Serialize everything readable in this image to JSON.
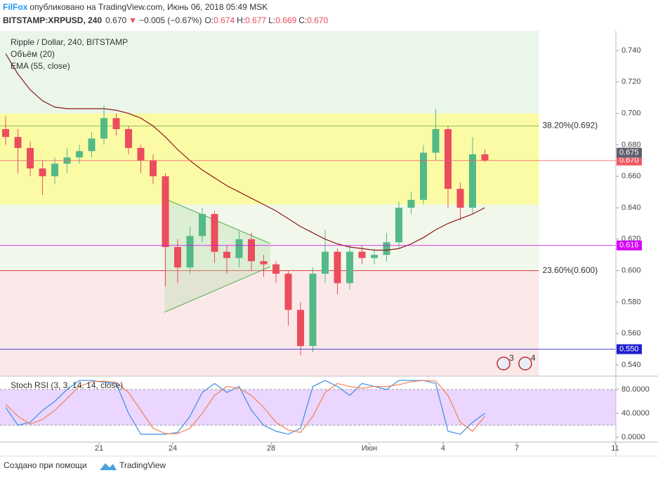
{
  "header": {
    "author": "FilFox",
    "published": "опубликовано на TradingView.com, Июнь 06, 2018 05:49 MSK",
    "symbol": "BITSTAMP:XRPUSD, 240",
    "last": "0.670",
    "arrow": "▼",
    "change": "−0.005 (−0.67%)",
    "ohlc": [
      {
        "key": "O:",
        "value": "0.674"
      },
      {
        "key": "H:",
        "value": "0.677"
      },
      {
        "key": "L:",
        "value": "0.669"
      },
      {
        "key": "C:",
        "value": "0.670"
      }
    ]
  },
  "chart_data": [
    {
      "type": "candlestick",
      "legend": [
        "Ripple / Dollar, 240, BITSTAMP",
        "Объём (20)"
      ],
      "x": [
        17.2,
        17.7,
        18.2,
        18.7,
        19.2,
        19.7,
        20.2,
        20.7,
        21.2,
        21.7,
        22.2,
        22.7,
        23.2,
        23.7,
        24.2,
        24.7,
        25.2,
        25.7,
        26.2,
        26.7,
        27.2,
        27.7,
        28.2,
        28.7,
        29.2,
        29.7,
        30.2,
        30.7,
        31.2,
        31.7,
        32.2,
        32.7,
        33.2,
        33.7,
        34.2,
        34.7,
        35.2,
        35.7,
        36.2,
        36.7
      ],
      "open": [
        0.69,
        0.685,
        0.678,
        0.665,
        0.66,
        0.668,
        0.672,
        0.676,
        0.684,
        0.697,
        0.69,
        0.678,
        0.67,
        0.66,
        0.615,
        0.602,
        0.622,
        0.636,
        0.612,
        0.608,
        0.62,
        0.606,
        0.604,
        0.598,
        0.575,
        0.552,
        0.598,
        0.612,
        0.592,
        0.612,
        0.608,
        0.61,
        0.618,
        0.64,
        0.645,
        0.675,
        0.69,
        0.652,
        0.64,
        0.674
      ],
      "high": [
        0.698,
        0.69,
        0.682,
        0.67,
        0.672,
        0.678,
        0.68,
        0.688,
        0.705,
        0.7,
        0.692,
        0.68,
        0.674,
        0.662,
        0.62,
        0.628,
        0.64,
        0.638,
        0.616,
        0.625,
        0.624,
        0.61,
        0.606,
        0.6,
        0.58,
        0.602,
        0.626,
        0.614,
        0.616,
        0.616,
        0.614,
        0.624,
        0.644,
        0.65,
        0.68,
        0.703,
        0.692,
        0.656,
        0.685,
        0.677
      ],
      "low": [
        0.68,
        0.662,
        0.66,
        0.648,
        0.655,
        0.662,
        0.668,
        0.672,
        0.68,
        0.686,
        0.674,
        0.662,
        0.655,
        0.59,
        0.592,
        0.598,
        0.618,
        0.605,
        0.598,
        0.602,
        0.6,
        0.596,
        0.592,
        0.565,
        0.546,
        0.548,
        0.592,
        0.585,
        0.588,
        0.604,
        0.604,
        0.606,
        0.614,
        0.636,
        0.642,
        0.67,
        0.64,
        0.632,
        0.636,
        0.669
      ],
      "close": [
        0.685,
        0.678,
        0.665,
        0.66,
        0.668,
        0.672,
        0.676,
        0.684,
        0.697,
        0.69,
        0.678,
        0.67,
        0.66,
        0.615,
        0.602,
        0.622,
        0.636,
        0.612,
        0.608,
        0.62,
        0.606,
        0.604,
        0.598,
        0.575,
        0.552,
        0.598,
        0.612,
        0.592,
        0.612,
        0.608,
        0.61,
        0.618,
        0.64,
        0.645,
        0.675,
        0.69,
        0.652,
        0.64,
        0.674,
        0.67
      ],
      "up_color": "#53b987",
      "down_color": "#eb4d5c",
      "series": [
        {
          "name": "EMA (55, close)",
          "color": "#8e1b1b",
          "values": [
            0.738,
            0.725,
            0.715,
            0.708,
            0.704,
            0.703,
            0.703,
            0.703,
            0.703,
            0.702,
            0.7,
            0.697,
            0.692,
            0.685,
            0.677,
            0.67,
            0.664,
            0.659,
            0.654,
            0.65,
            0.646,
            0.642,
            0.638,
            0.633,
            0.628,
            0.624,
            0.62,
            0.617,
            0.615,
            0.614,
            0.613,
            0.613,
            0.614,
            0.617,
            0.621,
            0.626,
            0.63,
            0.633,
            0.636,
            0.64
          ]
        }
      ],
      "xlim": [
        16.97,
        42.03
      ],
      "xticks": [
        21,
        24,
        28,
        {
          "value": 32,
          "label": "Июн"
        },
        {
          "value": 35,
          "label": "4"
        },
        {
          "value": 38,
          "label": "7"
        },
        {
          "value": 42,
          "label": "11"
        }
      ],
      "ylim": [
        0.5333,
        0.7525
      ],
      "yticks": [
        {
          "value": 0.54,
          "label": "0.540"
        },
        {
          "value": 0.56,
          "label": "0.560"
        },
        {
          "value": 0.58,
          "label": "0.580"
        },
        {
          "value": 0.6,
          "label": "0.600"
        },
        {
          "value": 0.62,
          "label": "0.620"
        },
        {
          "value": 0.64,
          "label": "0.640"
        },
        {
          "value": 0.66,
          "label": "0.660"
        },
        {
          "value": 0.68,
          "label": "0.680"
        },
        {
          "value": 0.7,
          "label": "0.700"
        },
        {
          "value": 0.72,
          "label": "0.720"
        },
        {
          "value": 0.74,
          "label": "0.740"
        }
      ],
      "zones_end": 38.9,
      "zones": [
        {
          "from": 0.7525,
          "to": 0.7,
          "color": "#e9f6e9"
        },
        {
          "from": 0.7,
          "to": 0.642,
          "color": "#fbfba6"
        },
        {
          "from": 0.642,
          "to": 0.6,
          "color": "#f1f7ea"
        },
        {
          "from": 0.6,
          "to": 0.5333,
          "color": "#fbe9e9"
        }
      ],
      "fib_levels": [
        {
          "label": "38.20%(0.692)",
          "value": 0.692,
          "color": "#8bc34a"
        },
        {
          "label": "23.60%(0.600)",
          "value": 0.6,
          "color": "#d93a3a"
        }
      ],
      "hlines": [
        {
          "value": 0.616,
          "label": "0.616",
          "color": "#d500f9"
        },
        {
          "value": 0.55,
          "label": "0.550",
          "color": "#1f1fd0"
        },
        {
          "value": 0.67,
          "label": "0.670",
          "color": "#f05a66"
        }
      ],
      "price_marker": {
        "value": 0.675,
        "label": "0.675",
        "color": "#5d606b"
      },
      "triangle": {
        "x": [
          23.66,
          27.97,
          27.97,
          23.66
        ],
        "y": [
          0.6458,
          0.6172,
          0.6025,
          0.5735
        ]
      },
      "events": [
        {
          "x": 37.46,
          "count": 3
        },
        {
          "x": 38.34,
          "count": 4
        }
      ]
    },
    {
      "type": "line",
      "title": "Stoch RSI (3, 3, 14, 14, close)",
      "x": [
        17.2,
        17.7,
        18.2,
        18.7,
        19.2,
        19.7,
        20.2,
        20.7,
        21.2,
        21.7,
        22.2,
        22.7,
        23.2,
        23.7,
        24.2,
        24.7,
        25.2,
        25.7,
        26.2,
        26.7,
        27.2,
        27.7,
        28.2,
        28.7,
        29.2,
        29.7,
        30.2,
        30.7,
        31.2,
        31.7,
        32.2,
        32.7,
        33.2,
        33.7,
        34.2,
        34.7,
        35.2,
        35.7,
        36.2,
        36.7
      ],
      "ylim": [
        -8.2,
        97.6
      ],
      "yticks": [
        {
          "value": 80,
          "label": "80.0000"
        },
        {
          "value": 40,
          "label": "40.0000"
        },
        {
          "value": 0,
          "label": "0.0000"
        }
      ],
      "band": [
        20,
        80
      ],
      "band_color": "#e5ccff",
      "series": [
        {
          "color": "#3b8ee8",
          "values": [
            50,
            20,
            25,
            45,
            60,
            80,
            95,
            95,
            92,
            90,
            40,
            5,
            5,
            5,
            8,
            35,
            75,
            90,
            75,
            85,
            45,
            20,
            10,
            5,
            15,
            85,
            95,
            85,
            70,
            90,
            85,
            80,
            95,
            95,
            95,
            90,
            10,
            5,
            25,
            40
          ]
        },
        {
          "color": "#f57f4f",
          "values": [
            55,
            35,
            22,
            30,
            45,
            65,
            85,
            93,
            94,
            92,
            75,
            45,
            15,
            6,
            6,
            15,
            40,
            70,
            85,
            82,
            70,
            50,
            25,
            12,
            8,
            35,
            75,
            90,
            85,
            82,
            85,
            85,
            88,
            93,
            95,
            94,
            70,
            25,
            10,
            35
          ]
        }
      ]
    }
  ],
  "footer": {
    "created": "Создано при помощи",
    "brand": "TradingView"
  }
}
